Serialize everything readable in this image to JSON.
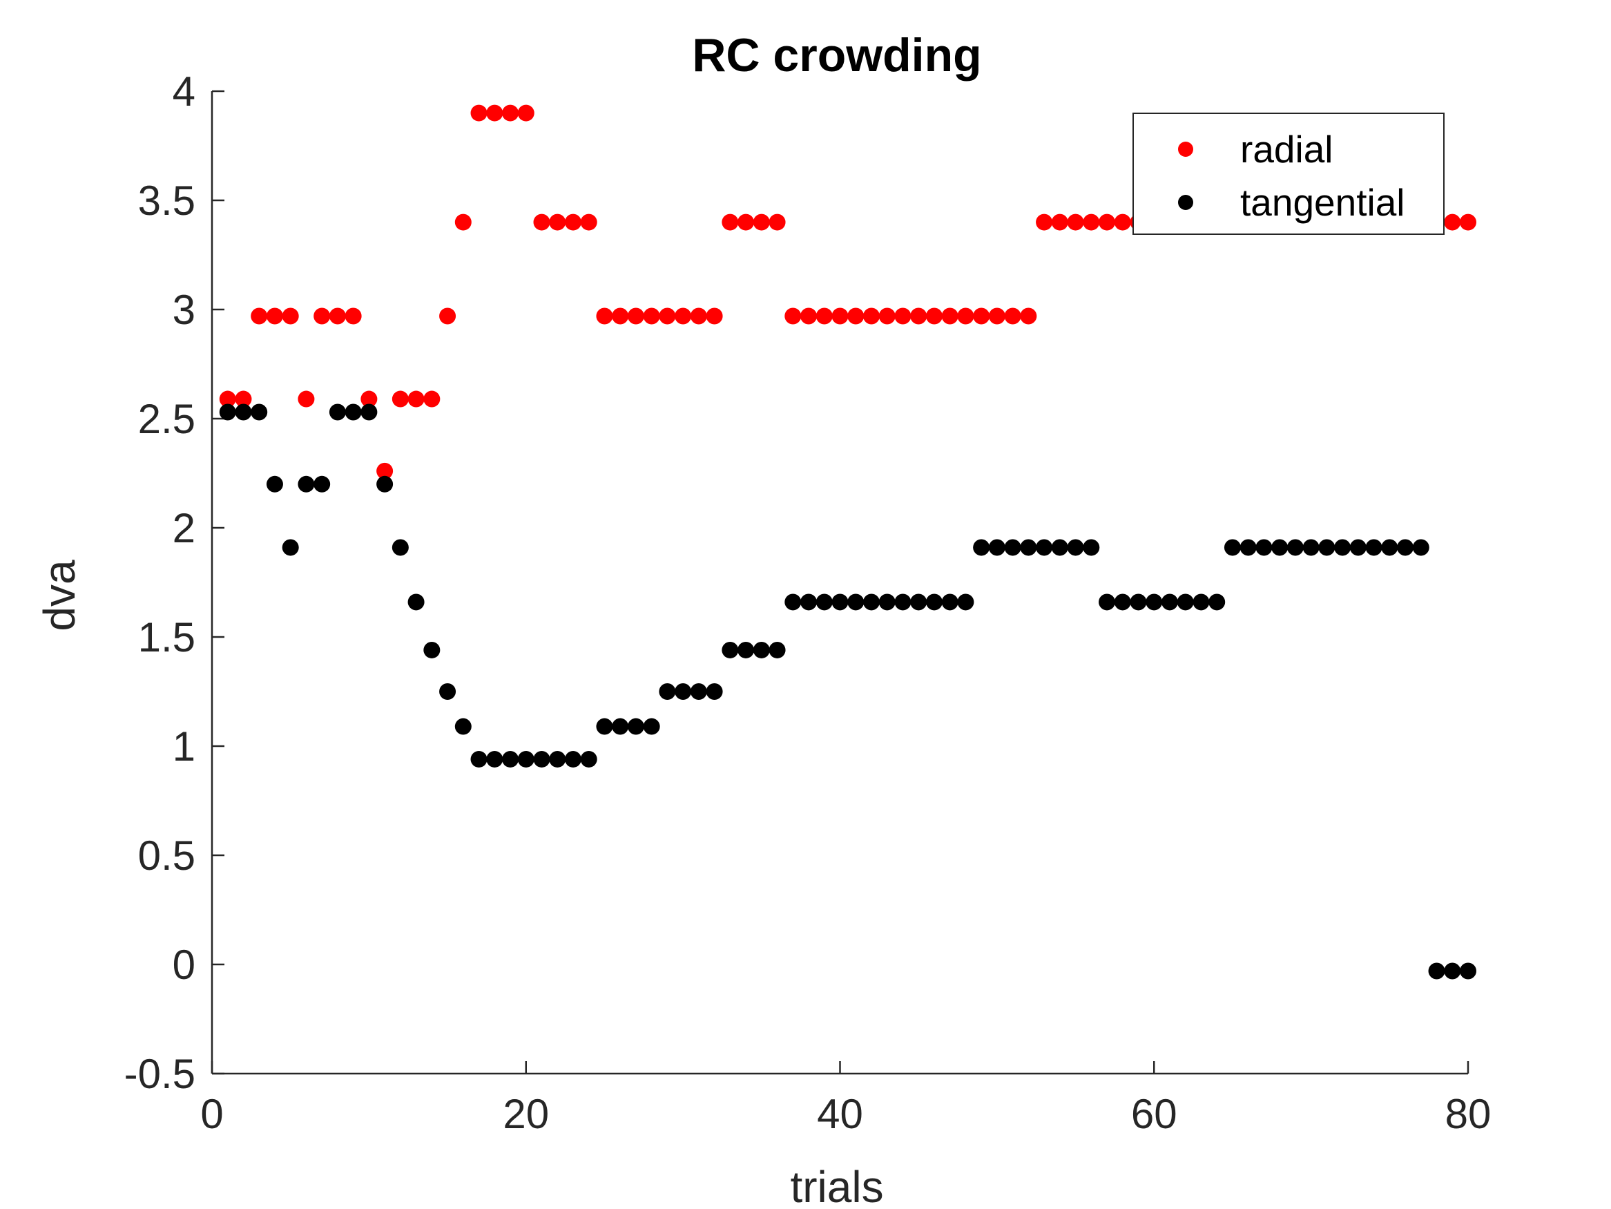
{
  "chart_data": {
    "type": "scatter",
    "title": "RC crowding",
    "xlabel": "trials",
    "ylabel": "dva",
    "xlim": [
      0,
      80
    ],
    "ylim": [
      -0.5,
      4
    ],
    "xticks": [
      0,
      20,
      40,
      60,
      80
    ],
    "xtick_labels": [
      "0",
      "20",
      "40",
      "60",
      "80"
    ],
    "yticks": [
      -0.5,
      0,
      0.5,
      1,
      1.5,
      2,
      2.5,
      3,
      3.5,
      4
    ],
    "ytick_labels": [
      "-0.5",
      "0",
      "0.5",
      "1",
      "1.5",
      "2",
      "2.5",
      "3",
      "3.5",
      "4"
    ],
    "grid": false,
    "legend_position": "top-right",
    "series": [
      {
        "name": "radial",
        "color": "#ff0000",
        "x": [
          1,
          2,
          3,
          4,
          5,
          6,
          7,
          8,
          9,
          10,
          11,
          12,
          13,
          14,
          15,
          16,
          17,
          18,
          19,
          20,
          21,
          22,
          23,
          24,
          25,
          26,
          27,
          28,
          29,
          30,
          31,
          32,
          33,
          34,
          35,
          36,
          37,
          38,
          39,
          40,
          41,
          42,
          43,
          44,
          45,
          46,
          47,
          48,
          49,
          50,
          51,
          52,
          53,
          54,
          55,
          56,
          57,
          58,
          59,
          60,
          61,
          62,
          63,
          64,
          65,
          66,
          67,
          68,
          69,
          70,
          71,
          72,
          73,
          74,
          75,
          76,
          77,
          78,
          79,
          80
        ],
        "y": [
          2.59,
          2.59,
          2.97,
          2.97,
          2.97,
          2.59,
          2.97,
          2.97,
          2.97,
          2.59,
          2.26,
          2.59,
          2.59,
          2.59,
          2.97,
          3.4,
          3.9,
          3.9,
          3.9,
          3.9,
          3.4,
          3.4,
          3.4,
          3.4,
          2.97,
          2.97,
          2.97,
          2.97,
          2.97,
          2.97,
          2.97,
          2.97,
          3.4,
          3.4,
          3.4,
          3.4,
          2.97,
          2.97,
          2.97,
          2.97,
          2.97,
          2.97,
          2.97,
          2.97,
          2.97,
          2.97,
          2.97,
          2.97,
          2.97,
          2.97,
          2.97,
          2.97,
          3.4,
          3.4,
          3.4,
          3.4,
          3.4,
          3.4,
          3.4,
          3.4,
          3.4,
          3.4,
          3.4,
          3.4,
          3.4,
          3.4,
          3.4,
          3.4,
          3.4,
          3.4,
          3.4,
          3.4,
          3.4,
          3.4,
          3.4,
          3.4,
          3.4,
          3.4,
          3.4,
          3.4
        ]
      },
      {
        "name": "tangential",
        "color": "#000000",
        "x": [
          1,
          2,
          3,
          4,
          5,
          6,
          7,
          8,
          9,
          10,
          11,
          12,
          13,
          14,
          15,
          16,
          17,
          18,
          19,
          20,
          21,
          22,
          23,
          24,
          25,
          26,
          27,
          28,
          29,
          30,
          31,
          32,
          33,
          34,
          35,
          36,
          37,
          38,
          39,
          40,
          41,
          42,
          43,
          44,
          45,
          46,
          47,
          48,
          49,
          50,
          51,
          52,
          53,
          54,
          55,
          56,
          57,
          58,
          59,
          60,
          61,
          62,
          63,
          64,
          65,
          66,
          67,
          68,
          69,
          70,
          71,
          72,
          73,
          74,
          75,
          76,
          77,
          78,
          79,
          80
        ],
        "y": [
          2.53,
          2.53,
          2.53,
          2.2,
          1.91,
          2.2,
          2.2,
          2.53,
          2.53,
          2.53,
          2.2,
          1.91,
          1.66,
          1.44,
          1.25,
          1.09,
          0.94,
          0.94,
          0.94,
          0.94,
          0.94,
          0.94,
          0.94,
          0.94,
          1.09,
          1.09,
          1.09,
          1.09,
          1.25,
          1.25,
          1.25,
          1.25,
          1.44,
          1.44,
          1.44,
          1.44,
          1.66,
          1.66,
          1.66,
          1.66,
          1.66,
          1.66,
          1.66,
          1.66,
          1.66,
          1.66,
          1.66,
          1.66,
          1.91,
          1.91,
          1.91,
          1.91,
          1.91,
          1.91,
          1.91,
          1.91,
          1.66,
          1.66,
          1.66,
          1.66,
          1.66,
          1.66,
          1.66,
          1.66,
          1.91,
          1.91,
          1.91,
          1.91,
          1.91,
          1.91,
          1.91,
          1.91,
          1.91,
          1.91,
          1.91,
          1.91,
          1.91,
          -0.03,
          -0.03,
          -0.03
        ]
      }
    ]
  }
}
